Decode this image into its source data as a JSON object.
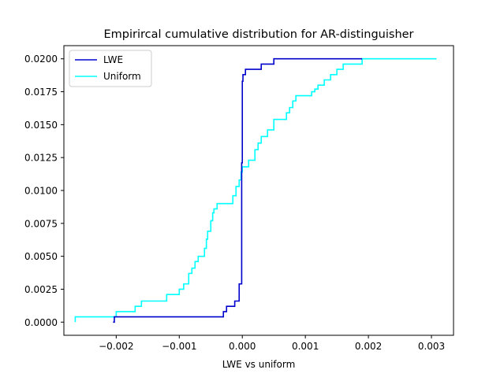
{
  "chart_data": {
    "type": "line",
    "title": "Empirircal cumulative distribution for AR-distinguisher",
    "xlabel": "LWE vs uniform",
    "ylabel": "",
    "xlim": [
      -0.00283,
      0.00335
    ],
    "ylim": [
      -0.001,
      0.021
    ],
    "xticks": [
      -0.002,
      -0.001,
      0.0,
      0.001,
      0.002,
      0.003
    ],
    "xtick_labels": [
      "−0.002",
      "−0.001",
      "0.000",
      "0.001",
      "0.002",
      "0.003"
    ],
    "yticks": [
      0.0,
      0.0025,
      0.005,
      0.0075,
      0.01,
      0.0125,
      0.015,
      0.0175,
      0.02
    ],
    "ytick_labels": [
      "0.0000",
      "0.0025",
      "0.0050",
      "0.0075",
      "0.0100",
      "0.0125",
      "0.0150",
      "0.0175",
      "0.0200"
    ],
    "grid": false,
    "legend_position": "top-left",
    "series": [
      {
        "name": "LWE",
        "color": "#0000cd",
        "x": [
          -0.00205,
          -0.00203,
          -0.0003,
          -0.00025,
          -0.0002,
          -0.00012,
          -5e-05,
          -1e-05,
          0.0,
          1e-05,
          5e-05,
          0.00012,
          0.0003,
          0.0004,
          0.0005,
          0.0006,
          0.0019
        ],
        "y": [
          0.0,
          0.0004,
          0.0008,
          0.0012,
          0.0012,
          0.0016,
          0.0029,
          0.0121,
          0.0183,
          0.0188,
          0.0192,
          0.0192,
          0.0196,
          0.0196,
          0.02,
          0.02,
          0.02
        ]
      },
      {
        "name": "Uniform",
        "color": "#00ffff",
        "x": [
          -0.00265,
          -0.00265,
          -0.002,
          -0.0017,
          -0.0016,
          -0.0012,
          -0.001,
          -0.00093,
          -0.00085,
          -0.0008,
          -0.00075,
          -0.0007,
          -0.0006,
          -0.00057,
          -0.00055,
          -0.0005,
          -0.00047,
          -0.00045,
          -0.0004,
          -0.00015,
          -0.0001,
          -5e-05,
          -2e-05,
          0.0,
          0.0001,
          0.0002,
          0.00025,
          0.0003,
          0.0004,
          0.0005,
          0.0007,
          0.00075,
          0.0008,
          0.00085,
          0.0011,
          0.00115,
          0.0012,
          0.0013,
          0.0014,
          0.0015,
          0.0016,
          0.0017,
          0.0019,
          0.00308
        ],
        "y": [
          0.0,
          0.0004,
          0.0008,
          0.0012,
          0.0016,
          0.0021,
          0.0025,
          0.0029,
          0.0037,
          0.0041,
          0.0046,
          0.005,
          0.0056,
          0.0063,
          0.0069,
          0.0077,
          0.0083,
          0.0086,
          0.009,
          0.0096,
          0.0103,
          0.0108,
          0.0114,
          0.0118,
          0.0123,
          0.0131,
          0.0136,
          0.0141,
          0.0146,
          0.0154,
          0.0159,
          0.0163,
          0.0168,
          0.0172,
          0.0175,
          0.0177,
          0.018,
          0.0184,
          0.0188,
          0.0192,
          0.0196,
          0.0196,
          0.02,
          0.02
        ]
      }
    ]
  }
}
